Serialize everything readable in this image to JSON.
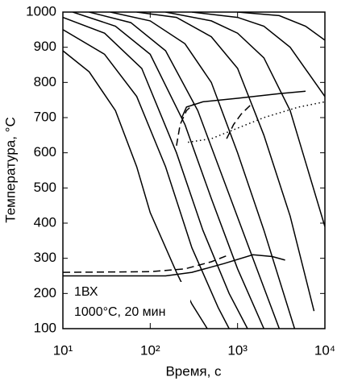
{
  "chart_data": {
    "type": "line",
    "xlabel": "Время, с",
    "ylabel": "Температура, °C",
    "annotations": [
      "1ВХ",
      "1000°C, 20 мин"
    ],
    "xscale": "log",
    "xlim": [
      10,
      10000
    ],
    "ylim": [
      100,
      1000
    ],
    "xticks": [
      {
        "value": 10,
        "label": "10¹"
      },
      {
        "value": 100,
        "label": "10²"
      },
      {
        "value": 1000,
        "label": "10³"
      },
      {
        "value": 10000,
        "label": "10⁴"
      }
    ],
    "yticks": [
      100,
      200,
      300,
      400,
      500,
      600,
      700,
      800,
      900,
      1000
    ],
    "grid": false,
    "series": [
      {
        "color": "#000000",
        "dash": "solid",
        "x": [
          10,
          20,
          40,
          70,
          100,
          200,
          300,
          450
        ],
        "values": [
          890,
          830,
          720,
          560,
          430,
          260,
          170,
          100
        ]
      },
      {
        "color": "#000000",
        "dash": "solid",
        "x": [
          10,
          30,
          70,
          150,
          300,
          600,
          800
        ],
        "values": [
          950,
          880,
          760,
          560,
          330,
          160,
          100
        ]
      },
      {
        "color": "#000000",
        "dash": "solid",
        "x": [
          10,
          30,
          80,
          200,
          400,
          800,
          1300
        ],
        "values": [
          985,
          940,
          840,
          600,
          380,
          200,
          100
        ]
      },
      {
        "color": "#000000",
        "dash": "solid",
        "x": [
          13,
          40,
          100,
          250,
          500,
          1000,
          2000
        ],
        "values": [
          1000,
          960,
          880,
          680,
          470,
          270,
          100
        ]
      },
      {
        "color": "#000000",
        "dash": "solid",
        "x": [
          20,
          60,
          150,
          350,
          700,
          1500,
          3000
        ],
        "values": [
          1000,
          970,
          890,
          720,
          520,
          300,
          100
        ]
      },
      {
        "color": "#000000",
        "dash": "solid",
        "x": [
          35,
          100,
          250,
          500,
          1000,
          2000,
          4500
        ],
        "values": [
          1000,
          975,
          910,
          800,
          600,
          380,
          100
        ]
      },
      {
        "color": "#000000",
        "dash": "solid",
        "x": [
          70,
          200,
          500,
          1000,
          2000,
          4000,
          7500
        ],
        "values": [
          1000,
          985,
          930,
          840,
          650,
          420,
          150
        ]
      },
      {
        "color": "#000000",
        "dash": "solid",
        "x": [
          150,
          500,
          1000,
          2000,
          4000,
          10000
        ],
        "values": [
          1000,
          975,
          940,
          870,
          720,
          390
        ]
      },
      {
        "color": "#000000",
        "dash": "solid",
        "x": [
          300,
          1000,
          2000,
          4000,
          10000
        ],
        "values": [
          1000,
          985,
          960,
          900,
          760
        ]
      },
      {
        "color": "#000000",
        "dash": "solid",
        "x": [
          1000,
          3000,
          6000,
          10000
        ],
        "values": [
          1000,
          990,
          960,
          920
        ]
      },
      {
        "color": "#000000",
        "dash": "solid",
        "x": [
          230,
          260,
          400,
          1000,
          3000,
          6000
        ],
        "values": [
          700,
          730,
          745,
          755,
          768,
          775
        ]
      },
      {
        "color": "#000000",
        "dash": "dashed",
        "x": [
          200,
          220,
          260,
          320,
          null,
          750,
          900,
          1100,
          1400
        ],
        "values": [
          620,
          680,
          720,
          740,
          null,
          640,
          680,
          710,
          735
        ]
      },
      {
        "color": "#000000",
        "dash": "dotted",
        "x": [
          270,
          500,
          1000,
          2000,
          5000,
          10000
        ],
        "values": [
          630,
          640,
          670,
          700,
          730,
          745
        ]
      },
      {
        "color": "#000000",
        "dash": "dashed",
        "x": [
          10,
          100,
          250,
          500,
          800
        ],
        "values": [
          260,
          262,
          270,
          290,
          310
        ]
      },
      {
        "color": "#000000",
        "dash": "solid",
        "x": [
          10,
          150,
          300,
          700,
          1500,
          2500,
          3500
        ],
        "values": [
          250,
          250,
          260,
          285,
          310,
          305,
          295
        ]
      }
    ]
  }
}
